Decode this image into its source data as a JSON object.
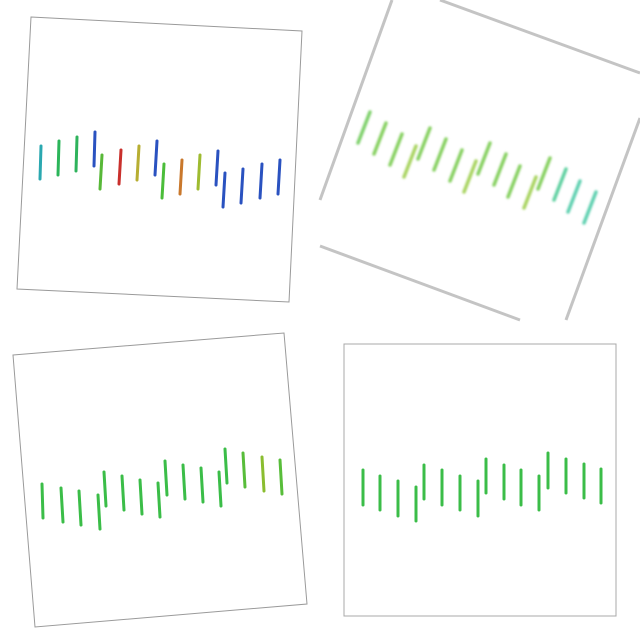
{
  "panels": [
    {
      "name": "panel-top-left",
      "border_color": "#9a9a9a",
      "strokes": [
        {
          "color": "#2aa8b0"
        },
        {
          "color": "#2bb55a"
        },
        {
          "color": "#2fb35c"
        },
        {
          "color": "#2a52c0"
        },
        {
          "color": "#58b838"
        },
        {
          "color": "#c9302c"
        },
        {
          "color": "#b7ae32"
        },
        {
          "color": "#2a52c0"
        },
        {
          "color": "#4bbd3a"
        },
        {
          "color": "#c9782c"
        },
        {
          "color": "#9ebb30"
        },
        {
          "color": "#2a52c0"
        },
        {
          "color": "#2a52c0"
        },
        {
          "color": "#2a52c0"
        },
        {
          "color": "#2a52c0"
        },
        {
          "color": "#2a52c0"
        }
      ]
    },
    {
      "name": "panel-top-right",
      "border_color": "#c4c4c4",
      "strokes": [
        {
          "color": "#7ed06a"
        },
        {
          "color": "#86d060"
        },
        {
          "color": "#86d060"
        },
        {
          "color": "#a8d460"
        },
        {
          "color": "#86d060"
        },
        {
          "color": "#86d060"
        },
        {
          "color": "#86d060"
        },
        {
          "color": "#a8d460"
        },
        {
          "color": "#86d060"
        },
        {
          "color": "#86d060"
        },
        {
          "color": "#86d060"
        },
        {
          "color": "#a8d460"
        },
        {
          "color": "#86d060"
        },
        {
          "color": "#5ed0a0"
        },
        {
          "color": "#5ed0b0"
        },
        {
          "color": "#5ed0b0"
        }
      ]
    },
    {
      "name": "panel-bottom-left",
      "border_color": "#9a9a9a",
      "strokes": [
        {
          "color": "#3bbd48"
        },
        {
          "color": "#3bbd48"
        },
        {
          "color": "#3bbd48"
        },
        {
          "color": "#3bbd48"
        },
        {
          "color": "#3bbd48"
        },
        {
          "color": "#3bbd48"
        },
        {
          "color": "#3bbd48"
        },
        {
          "color": "#3bbd48"
        },
        {
          "color": "#3bbd48"
        },
        {
          "color": "#3bbd48"
        },
        {
          "color": "#3bbd48"
        },
        {
          "color": "#3bbd48"
        },
        {
          "color": "#3bbd48"
        },
        {
          "color": "#58bd3a"
        },
        {
          "color": "#8abd30"
        },
        {
          "color": "#58bd3a"
        }
      ]
    },
    {
      "name": "panel-bottom-right",
      "border_color": "#a8a8a8",
      "strokes": [
        {
          "color": "#3bbd48"
        },
        {
          "color": "#3bbd48"
        },
        {
          "color": "#3bbd48"
        },
        {
          "color": "#3bbd48"
        },
        {
          "color": "#3bbd48"
        },
        {
          "color": "#3bbd48"
        },
        {
          "color": "#3bbd48"
        },
        {
          "color": "#3bbd48"
        },
        {
          "color": "#3bbd48"
        },
        {
          "color": "#3bbd48"
        },
        {
          "color": "#3bbd48"
        },
        {
          "color": "#3bbd48"
        },
        {
          "color": "#3bbd48"
        },
        {
          "color": "#3bbd48"
        },
        {
          "color": "#3bbd48"
        },
        {
          "color": "#3bbd48"
        }
      ]
    }
  ]
}
